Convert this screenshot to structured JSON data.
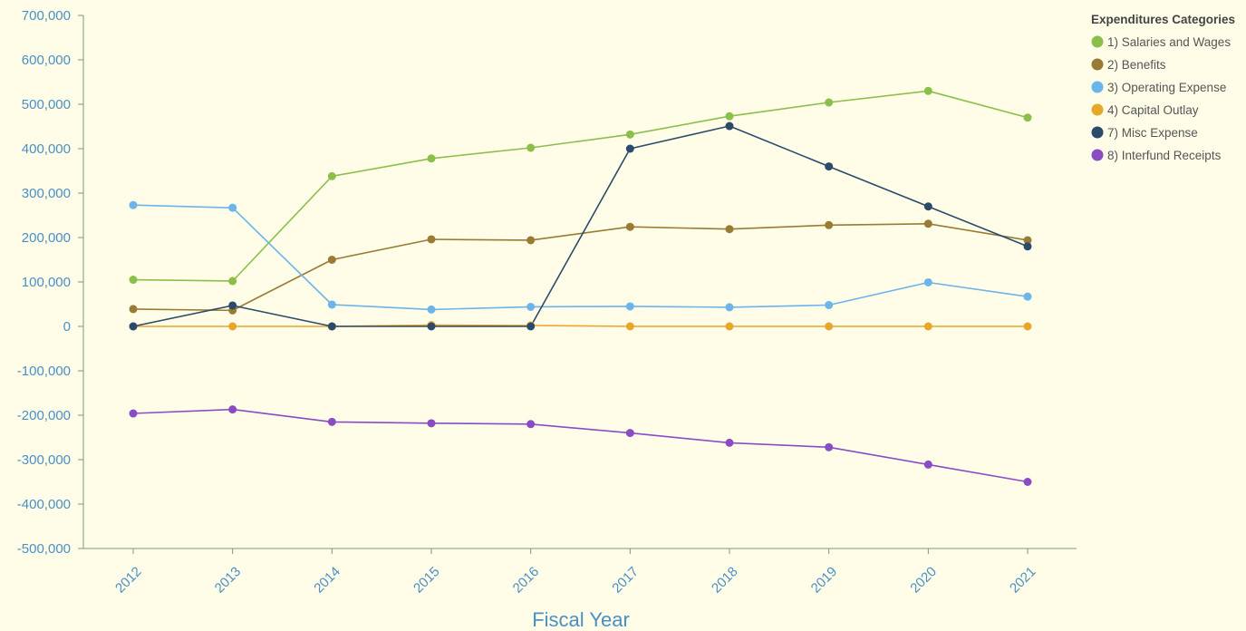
{
  "colors": {
    "background": "#fffde8",
    "axis_line": "#7a9a7a",
    "tick_text": "#4a8fc4",
    "axis_title": "#4a8fc4",
    "legend_text": "#555555",
    "legend_title": "#444444"
  },
  "chart_data": {
    "type": "line",
    "title": "",
    "xlabel": "Fiscal Year",
    "ylabel": "",
    "x": [
      "2012",
      "2013",
      "2014",
      "2015",
      "2016",
      "2017",
      "2018",
      "2019",
      "2020",
      "2021"
    ],
    "ylim": [
      -500000,
      700000
    ],
    "yticks": [
      700000,
      600000,
      500000,
      400000,
      300000,
      200000,
      100000,
      0,
      -100000,
      -200000,
      -300000,
      -400000,
      -500000
    ],
    "ytick_labels": [
      "700,000",
      "600,000",
      "500,000",
      "400,000",
      "300,000",
      "200,000",
      "100,000",
      "0",
      "-100,000",
      "-200,000",
      "-300,000",
      "-400,000",
      "-500,000"
    ],
    "grid": false,
    "legend": {
      "title": "Expenditures Categories",
      "position": "top-right"
    },
    "series": [
      {
        "name": "1) Salaries and Wages",
        "color": "#8cbf4a",
        "values": [
          105000,
          102000,
          338000,
          378000,
          402000,
          432000,
          473000,
          504000,
          530000,
          470000
        ]
      },
      {
        "name": "2) Benefits",
        "color": "#9a7b33",
        "values": [
          39000,
          36000,
          150000,
          196000,
          194000,
          224000,
          219000,
          228000,
          231000,
          194000
        ]
      },
      {
        "name": "3) Operating Expense",
        "color": "#6cb4ea",
        "values": [
          273000,
          267000,
          49000,
          38000,
          44000,
          45000,
          43000,
          48000,
          99000,
          67000
        ]
      },
      {
        "name": "4) Capital Outlay",
        "color": "#e6a82a",
        "values": [
          0,
          0,
          0,
          3000,
          2000,
          0,
          0,
          0,
          0,
          0
        ]
      },
      {
        "name": "7) Misc Expense",
        "color": "#2c4a6a",
        "values": [
          0,
          47000,
          0,
          0,
          0,
          400000,
          451000,
          360000,
          270000,
          180000
        ]
      },
      {
        "name": "8) Interfund Receipts",
        "color": "#8a4cc4",
        "values": [
          -196000,
          -187000,
          -215000,
          -218000,
          -220000,
          -240000,
          -262000,
          -272000,
          -311000,
          -350000
        ]
      }
    ]
  }
}
